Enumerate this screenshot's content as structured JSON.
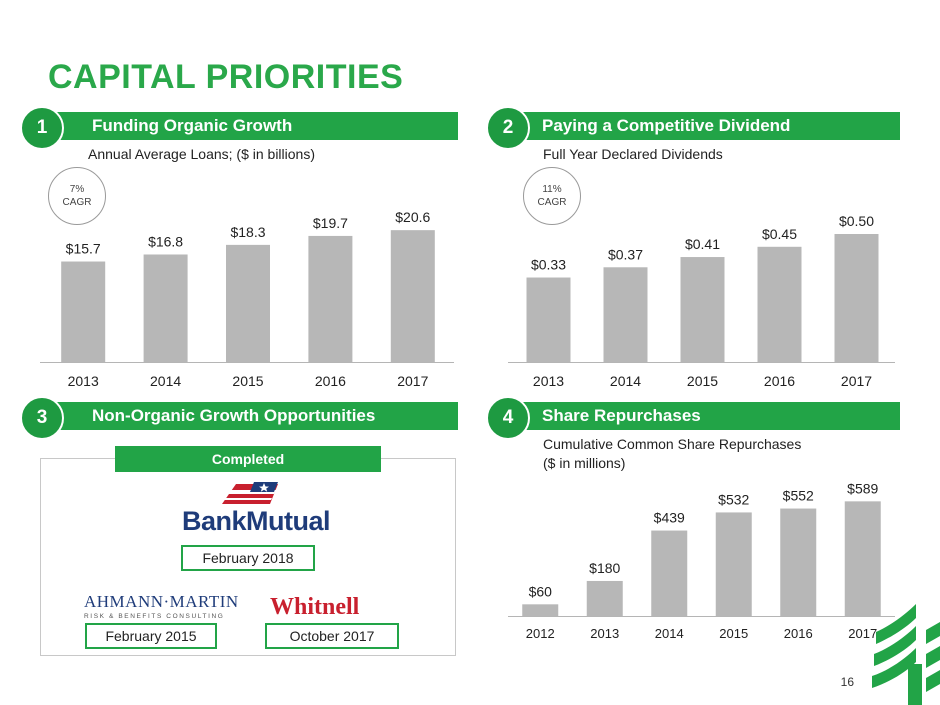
{
  "page": {
    "title": "CAPITAL PRIORITIES",
    "page_number": "16"
  },
  "colors": {
    "brand_green": "#22a447",
    "bar_gray": "#b7b7b7"
  },
  "sections": {
    "s1": {
      "number": "1",
      "title": "Funding Organic Growth",
      "subtitle": "Annual Average Loans; ($ in billions)",
      "cagr_value": "7%",
      "cagr_label": "CAGR"
    },
    "s2": {
      "number": "2",
      "title": "Paying a Competitive Dividend",
      "subtitle": "Full Year Declared Dividends",
      "cagr_value": "11%",
      "cagr_label": "CAGR"
    },
    "s3": {
      "number": "3",
      "title": "Non-Organic Growth Opportunities",
      "completed_label": "Completed",
      "acquisitions": [
        {
          "name": "BankMutual",
          "name_part1": "Bank",
          "name_part2": "Mutual",
          "date": "February 2018"
        },
        {
          "name": "Ahmann-Martin",
          "logo_line1": "AHMANN·MARTIN",
          "logo_line2": "RISK & BENEFITS CONSULTING",
          "date": "February 2015"
        },
        {
          "name": "Whitnell",
          "logo_text": "Whitnell",
          "date": "October 2017"
        }
      ]
    },
    "s4": {
      "number": "4",
      "title": "Share Repurchases",
      "subtitle_line1": "Cumulative Common Share Repurchases",
      "subtitle_line2": "($ in millions)"
    }
  },
  "chart_data": [
    {
      "type": "bar",
      "title": "Annual Average Loans; ($ in billions)",
      "categories": [
        "2013",
        "2014",
        "2015",
        "2016",
        "2017"
      ],
      "values": [
        15.7,
        16.8,
        18.3,
        19.7,
        20.6
      ],
      "labels": [
        "$15.7",
        "$16.8",
        "$18.3",
        "$19.7",
        "$20.6"
      ],
      "ylim": [
        0,
        30
      ],
      "grid": false
    },
    {
      "type": "bar",
      "title": "Full Year Declared Dividends",
      "categories": [
        "2013",
        "2014",
        "2015",
        "2016",
        "2017"
      ],
      "values": [
        0.33,
        0.37,
        0.41,
        0.45,
        0.5
      ],
      "labels": [
        "$0.33",
        "$0.37",
        "$0.41",
        "$0.45",
        "$0.50"
      ],
      "ylim": [
        0,
        0.75
      ],
      "grid": false
    },
    {
      "type": "bar",
      "title": "Cumulative Common Share Repurchases ($ in millions)",
      "categories": [
        "2012",
        "2013",
        "2014",
        "2015",
        "2016",
        "2017"
      ],
      "values": [
        60,
        180,
        439,
        532,
        552,
        589
      ],
      "labels": [
        "$60",
        "$180",
        "$439",
        "$532",
        "$552",
        "$589"
      ],
      "ylim": [
        0,
        750
      ],
      "grid": false
    }
  ]
}
